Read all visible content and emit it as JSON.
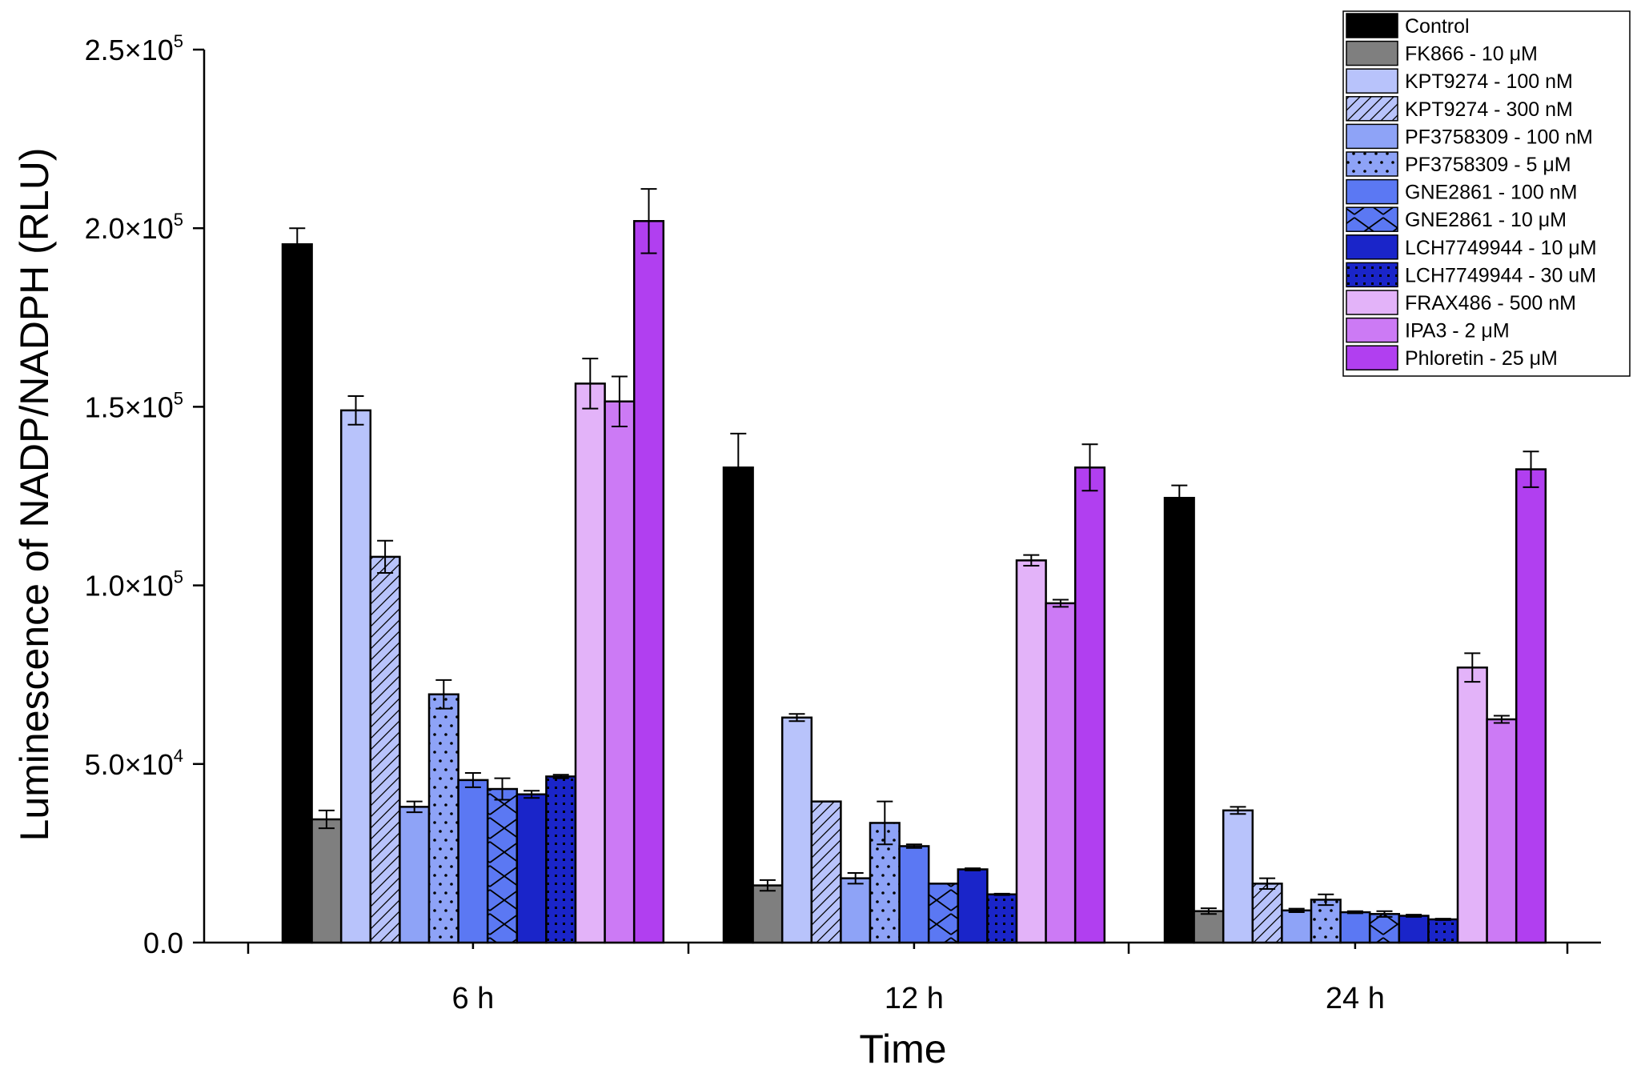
{
  "chart_data": {
    "type": "bar",
    "title": "",
    "xlabel": "Time",
    "ylabel": "Luminescence of NADP/NADPH (RLU)",
    "ylim": [
      0,
      250000
    ],
    "yticks": [
      {
        "value": 0,
        "label": "0.0",
        "mant": "",
        "exp": ""
      },
      {
        "value": 50000,
        "label": "5.0×10⁴",
        "mant": "5.0×10",
        "exp": "4"
      },
      {
        "value": 100000,
        "label": "1.0×10⁵",
        "mant": "1.0×10",
        "exp": "5"
      },
      {
        "value": 150000,
        "label": "1.5×10⁵",
        "mant": "1.5×10",
        "exp": "5"
      },
      {
        "value": 200000,
        "label": "2.0×10⁵",
        "mant": "2.0×10",
        "exp": "5"
      },
      {
        "value": 250000,
        "label": "2.5×10⁵",
        "mant": "2.5×10",
        "exp": "5"
      }
    ],
    "categories": [
      "6 h",
      "12 h",
      "24 h"
    ],
    "legend_position": "top-right",
    "grid": false,
    "series": [
      {
        "name": "Control",
        "color": "#000000",
        "pattern": "none",
        "values": [
          195500,
          133000,
          124500
        ],
        "errors": [
          4500,
          9500,
          3500
        ]
      },
      {
        "name": "FK866 - 10 μM",
        "color": "#7f7f7f",
        "pattern": "none",
        "values": [
          34500,
          16000,
          8800
        ],
        "errors": [
          2500,
          1500,
          800
        ]
      },
      {
        "name": "KPT9274 - 100 nM",
        "color": "#b8c3fb",
        "pattern": "none",
        "values": [
          149000,
          63000,
          37000
        ],
        "errors": [
          4000,
          1000,
          1000
        ]
      },
      {
        "name": "KPT9274 - 300 nM",
        "color": "#b8c3fb",
        "pattern": "diagonal",
        "values": [
          108000,
          39500,
          16500
        ],
        "errors": [
          4500,
          0,
          1500
        ]
      },
      {
        "name": "PF3758309 - 100 nM",
        "color": "#8ea3f7",
        "pattern": "none",
        "values": [
          38000,
          18000,
          9000
        ],
        "errors": [
          1500,
          1500,
          500
        ]
      },
      {
        "name": "PF3758309 - 5 μM",
        "color": "#8ea3f7",
        "pattern": "dots",
        "values": [
          69500,
          33500,
          12000
        ],
        "errors": [
          4000,
          6000,
          1500
        ]
      },
      {
        "name": "GNE2861 - 100 nM",
        "color": "#5b78f3",
        "pattern": "none",
        "values": [
          45500,
          27000,
          8500
        ],
        "errors": [
          2000,
          500,
          300
        ]
      },
      {
        "name": "GNE2861 - 10 μM",
        "color": "#5b78f3",
        "pattern": "zigzag",
        "values": [
          43000,
          16500,
          8000
        ],
        "errors": [
          3000,
          0,
          800
        ]
      },
      {
        "name": "LCH7749944 - 10 μM",
        "color": "#1a25c9",
        "pattern": "none",
        "values": [
          41500,
          20500,
          7500
        ],
        "errors": [
          1000,
          300,
          300
        ]
      },
      {
        "name": "LCH7749944 - 30 uM",
        "color": "#1a25c9",
        "pattern": "grid-dots",
        "values": [
          46500,
          13500,
          6500
        ],
        "errors": [
          500,
          200,
          200
        ]
      },
      {
        "name": "FRAX486 - 500 nM",
        "color": "#e3b3f9",
        "pattern": "none",
        "values": [
          156500,
          107000,
          77000
        ],
        "errors": [
          7000,
          1500,
          4000
        ]
      },
      {
        "name": "IPA3 - 2 μM",
        "color": "#cc7af5",
        "pattern": "none",
        "values": [
          151500,
          95000,
          62500
        ],
        "errors": [
          7000,
          1000,
          1000
        ]
      },
      {
        "name": "Phloretin - 25 μM",
        "color": "#b13ff0",
        "pattern": "none",
        "values": [
          202000,
          133000,
          132500
        ],
        "errors": [
          9000,
          6500,
          5000
        ]
      }
    ]
  }
}
